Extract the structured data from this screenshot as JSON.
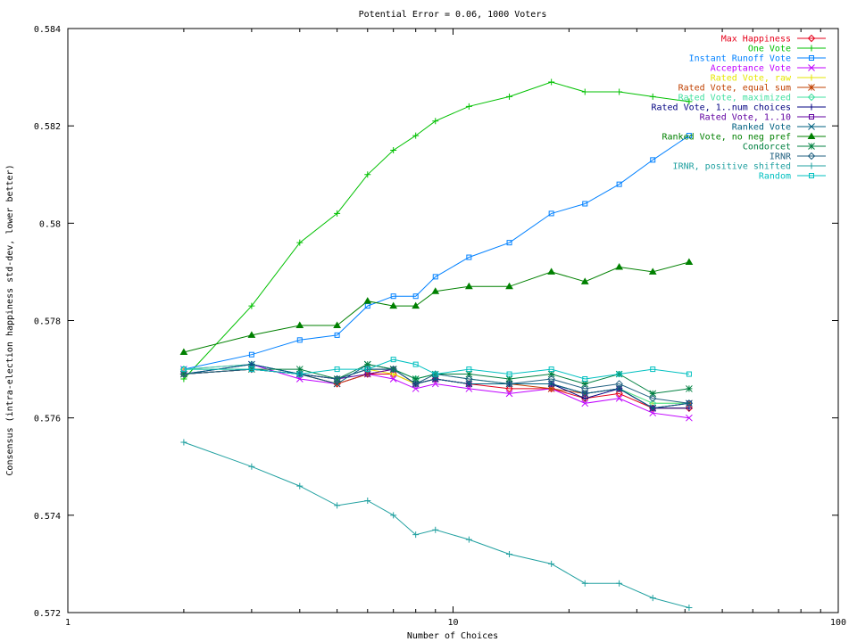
{
  "chart_data": {
    "type": "line",
    "title": "Potential Error = 0.06, 1000 Voters",
    "xlabel": "Number of Choices",
    "ylabel": "Consensus (intra-election happiness std-dev, lower better)",
    "xscale": "log",
    "xlim": [
      1,
      100
    ],
    "ylim": [
      0.572,
      0.584
    ],
    "xticks": [
      1,
      10,
      100
    ],
    "xtick_labels": [
      "1",
      "10",
      "100"
    ],
    "yticks": [
      0.572,
      0.574,
      0.576,
      0.578,
      0.58,
      0.582,
      0.584
    ],
    "ytick_labels": [
      "0.572",
      "0.574",
      "0.576",
      "0.578",
      "0.58",
      "0.582",
      "0.584"
    ],
    "legend_position": "top-right",
    "x": [
      2,
      3,
      4,
      5,
      6,
      7,
      8,
      9,
      11,
      14,
      18,
      22,
      27,
      33,
      41
    ],
    "series": [
      {
        "name": "Max Happiness",
        "color": "#e6001a",
        "marker": "diamond",
        "values": [
          0.5769,
          0.577,
          0.5769,
          0.5767,
          0.5769,
          0.5769,
          0.5767,
          0.5768,
          0.5767,
          0.5766,
          0.5766,
          0.5764,
          0.5765,
          0.5762,
          0.5762
        ]
      },
      {
        "name": "One Vote",
        "color": "#00c000",
        "marker": "plus",
        "values": [
          0.5768,
          0.5783,
          0.5796,
          0.5802,
          0.581,
          0.5815,
          0.5818,
          0.5821,
          0.5824,
          0.5826,
          0.5829,
          0.5827,
          0.5827,
          0.5826,
          0.5825
        ]
      },
      {
        "name": "Instant Runoff Vote",
        "color": "#0080ff",
        "marker": "square",
        "values": [
          0.577,
          0.5773,
          0.5776,
          0.5777,
          0.5783,
          0.5785,
          0.5785,
          0.5789,
          0.5793,
          0.5796,
          0.5802,
          0.5804,
          0.5808,
          0.5813,
          0.5818
        ]
      },
      {
        "name": "Acceptance Vote",
        "color": "#c000ff",
        "marker": "x",
        "values": [
          0.577,
          0.5771,
          0.5768,
          0.5767,
          0.5769,
          0.5768,
          0.5766,
          0.5767,
          0.5766,
          0.5765,
          0.5766,
          0.5763,
          0.5764,
          0.5761,
          0.576
        ]
      },
      {
        "name": "Rated Vote, raw",
        "color": "#e6e600",
        "marker": "plus",
        "values": [
          0.577,
          0.577,
          0.5769,
          0.5768,
          0.577,
          0.5769,
          0.5767,
          0.5768,
          0.5767,
          0.5767,
          0.5767,
          0.5765,
          0.5766,
          0.5763,
          0.5763
        ]
      },
      {
        "name": "Rated Vote, equal sum",
        "color": "#c04000",
        "marker": "star",
        "values": [
          0.5769,
          0.577,
          0.5769,
          0.5767,
          0.5769,
          0.577,
          0.5767,
          0.5768,
          0.5767,
          0.5767,
          0.5766,
          0.5765,
          0.5766,
          0.5762,
          0.5763
        ]
      },
      {
        "name": "Rated Vote, maximized",
        "color": "#40e0a0",
        "marker": "diamond",
        "values": [
          0.577,
          0.5771,
          0.5769,
          0.5768,
          0.577,
          0.577,
          0.5768,
          0.5769,
          0.5768,
          0.5767,
          0.5767,
          0.5765,
          0.5766,
          0.5763,
          0.5763
        ]
      },
      {
        "name": "Rated Vote, 1..num choices",
        "color": "#000080",
        "marker": "plus",
        "values": [
          0.5769,
          0.5771,
          0.5769,
          0.5768,
          0.577,
          0.577,
          0.5767,
          0.5768,
          0.5767,
          0.5767,
          0.5767,
          0.5764,
          0.5766,
          0.5762,
          0.5762
        ]
      },
      {
        "name": "Rated Vote, 1..10",
        "color": "#6000a0",
        "marker": "square",
        "values": [
          0.5769,
          0.577,
          0.5769,
          0.5768,
          0.5769,
          0.577,
          0.5767,
          0.5768,
          0.5767,
          0.5767,
          0.5767,
          0.5765,
          0.5766,
          0.5762,
          0.5763
        ]
      },
      {
        "name": "Ranked Vote",
        "color": "#006080",
        "marker": "x",
        "values": [
          0.5769,
          0.5771,
          0.5769,
          0.5767,
          0.5771,
          0.577,
          0.5767,
          0.5768,
          0.5767,
          0.5767,
          0.5767,
          0.5765,
          0.5766,
          0.5762,
          0.5763
        ]
      },
      {
        "name": "Ranked Vote, no neg pref",
        "color": "#008000",
        "marker": "triangle",
        "values": [
          0.57735,
          0.5777,
          0.5779,
          0.5779,
          0.5784,
          0.5783,
          0.5783,
          0.5786,
          0.5787,
          0.5787,
          0.579,
          0.5788,
          0.5791,
          0.579,
          0.5792
        ]
      },
      {
        "name": "Condorcet",
        "color": "#008040",
        "marker": "star",
        "values": [
          0.5769,
          0.577,
          0.577,
          0.5768,
          0.5771,
          0.577,
          0.5768,
          0.5769,
          0.5769,
          0.5768,
          0.5769,
          0.5767,
          0.5769,
          0.5765,
          0.5766
        ]
      },
      {
        "name": "IRNR",
        "color": "#206080",
        "marker": "diamond",
        "values": [
          0.5769,
          0.577,
          0.5769,
          0.5768,
          0.577,
          0.577,
          0.5767,
          0.5769,
          0.5768,
          0.5767,
          0.5768,
          0.5766,
          0.5767,
          0.5764,
          0.5763
        ]
      },
      {
        "name": "IRNR, positive shifted",
        "color": "#20a0a0",
        "marker": "plus",
        "values": [
          0.5755,
          0.575,
          0.5746,
          0.5742,
          0.5743,
          0.574,
          0.5736,
          0.5737,
          0.5735,
          0.5732,
          0.573,
          0.5726,
          0.5726,
          0.5723,
          0.5721
        ]
      },
      {
        "name": "Random",
        "color": "#00c0c0",
        "marker": "square",
        "values": [
          0.577,
          0.577,
          0.5769,
          0.577,
          0.577,
          0.5772,
          0.5771,
          0.5769,
          0.577,
          0.5769,
          0.577,
          0.5768,
          0.5769,
          0.577,
          0.5769
        ]
      }
    ]
  }
}
